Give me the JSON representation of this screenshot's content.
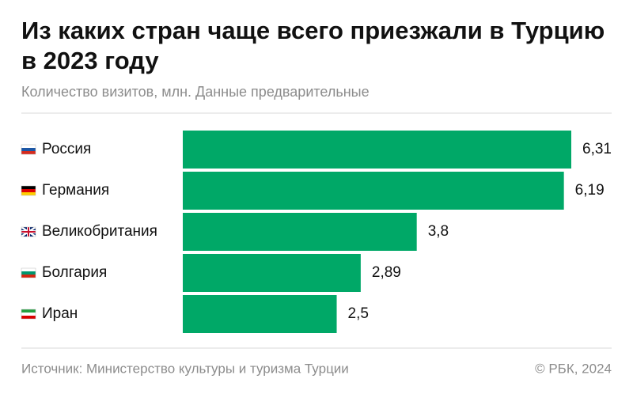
{
  "chart_data": {
    "type": "bar",
    "orientation": "horizontal",
    "title": "Из каких стран чаще всего приезжали в Турцию в 2023 году",
    "subtitle": "Количество визитов, млн. Данные предварительные",
    "categories": [
      "Россия",
      "Германия",
      "Великобритания",
      "Болгария",
      "Иран"
    ],
    "values": [
      6.31,
      6.19,
      3.8,
      2.89,
      2.5
    ],
    "value_labels": [
      "6,31",
      "6,19",
      "3,8",
      "2,89",
      "2,5"
    ],
    "color": "#00a867",
    "source": "Источник: Министерство культуры и туризма Турции",
    "credit": "© РБК, 2024"
  }
}
